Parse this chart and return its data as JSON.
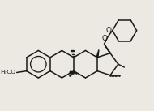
{
  "bg": "#ece8e2",
  "lc": "#1a1a1a",
  "lw": 1.1,
  "fw": 1.9,
  "fh": 1.37,
  "dpi": 100,
  "label_meo": "H₃CO",
  "label_o1": "O",
  "label_o2": "O",
  "xlim": [
    0,
    190
  ],
  "ylim": [
    0,
    137
  ]
}
